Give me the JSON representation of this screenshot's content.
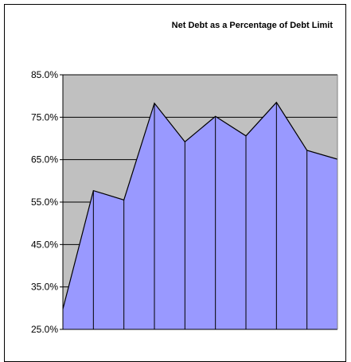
{
  "chart_data": {
    "type": "area",
    "title": "Net Debt as a Percentage of Debt Limit",
    "xlabel": "",
    "ylabel": "",
    "ylim": [
      25,
      85
    ],
    "y_ticks": [
      85,
      75,
      65,
      55,
      45,
      35,
      25
    ],
    "y_tick_labels": [
      "85.0%",
      "75.0%",
      "65.0%",
      "55.0%",
      "45.0%",
      "35.0%",
      "25.0%"
    ],
    "grid": true,
    "legend": "none",
    "colors": {
      "plot_background": "#c0c0c0",
      "area_fill": "#9999ff",
      "line": "#000000"
    },
    "values": [
      29.8,
      57.7,
      55.5,
      78.3,
      69.2,
      75.2,
      70.6,
      78.5,
      67.2,
      65.1
    ]
  }
}
